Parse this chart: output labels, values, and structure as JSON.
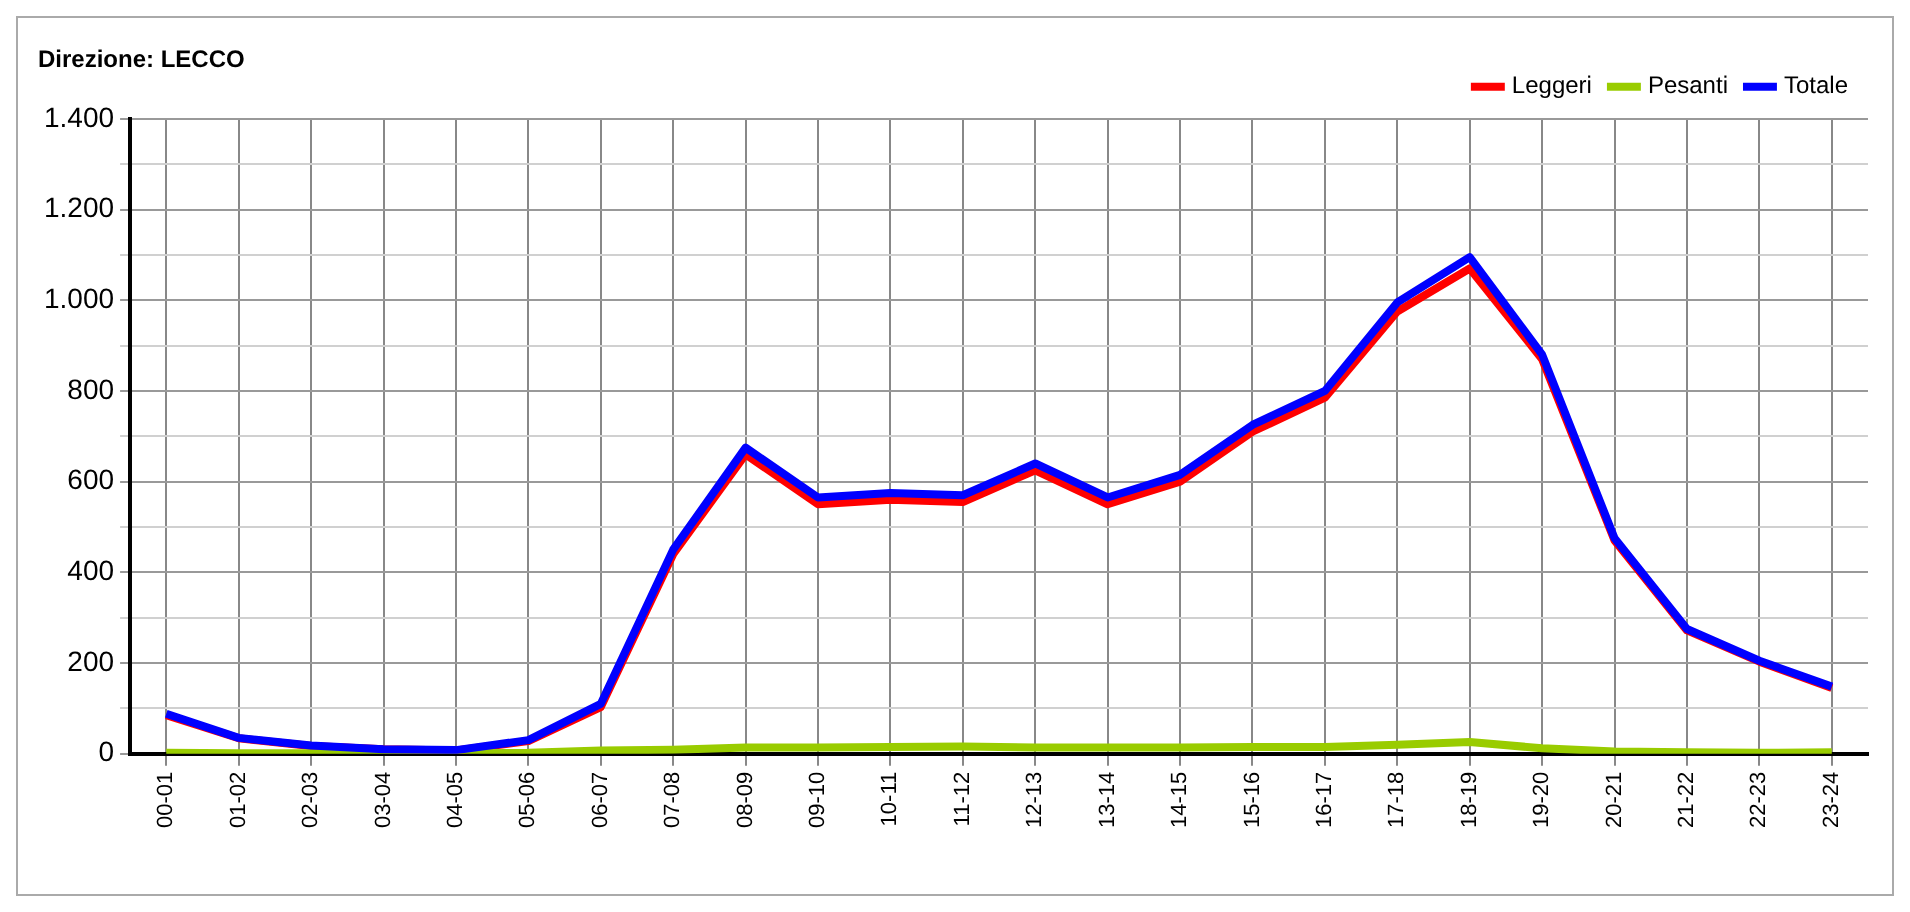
{
  "chart_data": {
    "type": "line",
    "title": "Direzione: LECCO",
    "categories": [
      "00-01",
      "01-02",
      "02-03",
      "03-04",
      "04-05",
      "05-06",
      "06-07",
      "07-08",
      "08-09",
      "09-10",
      "10-11",
      "11-12",
      "12-13",
      "13-14",
      "14-15",
      "15-16",
      "16-17",
      "17-18",
      "18-19",
      "19-20",
      "20-21",
      "21-22",
      "22-23",
      "23-24"
    ],
    "series": [
      {
        "name": "Leggeri",
        "color": "#ff0000",
        "values": [
          85,
          34,
          17,
          10,
          7,
          28,
          103,
          440,
          660,
          550,
          560,
          555,
          625,
          550,
          600,
          710,
          785,
          975,
          1070,
          870,
          470,
          272,
          203,
          145
        ]
      },
      {
        "name": "Pesanti",
        "color": "#99cc00",
        "values": [
          2,
          1,
          1,
          0,
          1,
          2,
          7,
          9,
          14,
          14,
          15,
          16,
          14,
          14,
          14,
          15,
          15,
          20,
          26,
          12,
          5,
          3,
          2,
          3
        ]
      },
      {
        "name": "Totale",
        "color": "#0000ff",
        "values": [
          88,
          35,
          18,
          10,
          8,
          30,
          110,
          450,
          675,
          565,
          575,
          570,
          640,
          565,
          615,
          725,
          800,
          995,
          1095,
          880,
          475,
          275,
          205,
          148
        ]
      }
    ],
    "ylim": [
      0,
      1400
    ],
    "yticks": [
      0,
      {
        "value": 100,
        "label": null
      },
      200,
      {
        "value": 300,
        "label": null
      },
      400,
      {
        "value": 500,
        "label": null
      },
      600,
      {
        "value": 700,
        "label": null
      },
      800,
      {
        "value": 900,
        "label": null
      },
      {
        "value": 1000,
        "label": "1.000"
      },
      {
        "value": 1100,
        "label": null
      },
      {
        "value": 1200,
        "label": "1.200"
      },
      {
        "value": 1300,
        "label": null
      },
      {
        "value": 1400,
        "label": "1.400"
      }
    ],
    "grid": true,
    "legend": "top right",
    "marker": "none",
    "line_style": "solid"
  }
}
